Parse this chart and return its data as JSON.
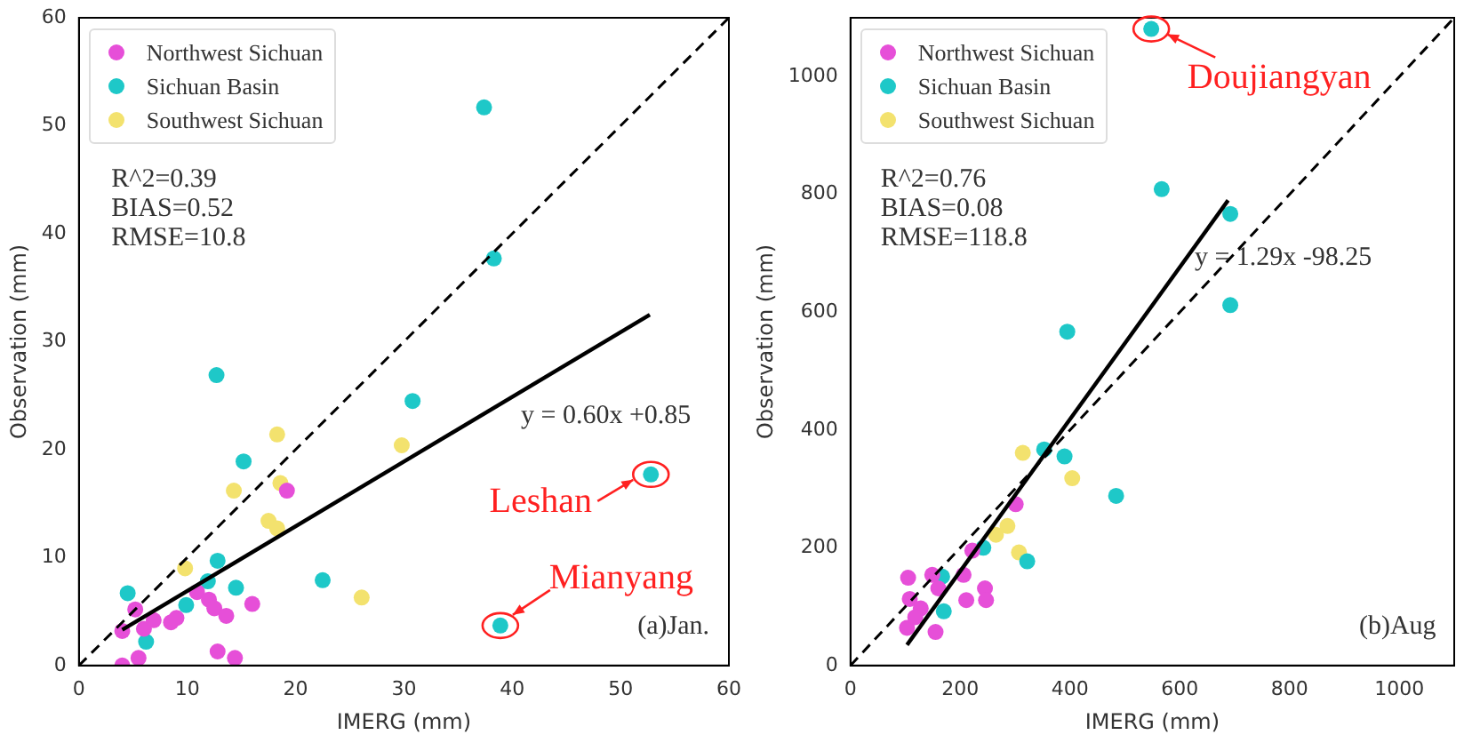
{
  "chart_data": [
    {
      "type": "scatter",
      "xlabel": "IMERG (mm)",
      "ylabel": "Observation (mm)",
      "xlim": [
        0,
        60
      ],
      "ylim": [
        0,
        60
      ],
      "xticks": [
        0,
        10,
        20,
        30,
        40,
        50,
        60
      ],
      "yticks": [
        0,
        10,
        20,
        30,
        40,
        50,
        60
      ],
      "grid": false,
      "legend": "top left",
      "marker": "circle",
      "annotations": [
        "R^2=0.39",
        "BIAS=0.52",
        "RMSE=10.8",
        "y = 0.60x +0.85",
        "(a)Jan.",
        {
          "text": "Leshan",
          "x": 52.8,
          "y": 17.7
        },
        {
          "text": "Mianyang",
          "x": 38.9,
          "y": 3.7
        }
      ],
      "series": [
        {
          "name": "Northwest Sichuan",
          "color": "#e64fd8",
          "x": [
            4.0,
            5.5,
            5.2,
            4.0,
            6.0,
            6.9,
            8.5,
            9.0,
            10.9,
            12.0,
            12.5,
            13.6,
            16.0,
            12.8,
            14.4,
            19.2
          ],
          "values": [
            0,
            0.7,
            5.2,
            3.2,
            3.4,
            4.2,
            4.0,
            4.4,
            6.8,
            6.1,
            5.3,
            4.6,
            5.7,
            1.3,
            0.7,
            16.2
          ]
        },
        {
          "name": "Sichuan Basin",
          "color": "#1ec8c8",
          "x": [
            4.5,
            6.2,
            9.9,
            11.9,
            12.8,
            12.7,
            14.5,
            15.2,
            22.5,
            30.8,
            37.4,
            38.3,
            38.9,
            52.8
          ],
          "values": [
            6.7,
            2.2,
            5.6,
            7.8,
            9.7,
            26.9,
            7.2,
            18.9,
            7.9,
            24.5,
            51.7,
            37.7,
            3.7,
            17.7
          ]
        },
        {
          "name": "Southwest Sichuan",
          "color": "#f3e26e",
          "x": [
            9.8,
            14.3,
            18.3,
            18.6,
            17.5,
            18.3,
            26.1,
            29.8
          ],
          "values": [
            9.0,
            16.2,
            21.4,
            16.9,
            13.4,
            12.7,
            6.3,
            20.4
          ]
        },
        {
          "type": "line",
          "color": "#000000",
          "line_style": "dashed",
          "marker": "none",
          "x": [
            0,
            60
          ],
          "values": [
            0,
            60
          ]
        },
        {
          "type": "line",
          "color": "#000000",
          "line_style": "solid",
          "marker": "none",
          "x": [
            4,
            52.7
          ],
          "values": [
            3.3,
            32.5
          ]
        }
      ]
    },
    {
      "type": "scatter",
      "xlabel": "IMERG (mm)",
      "ylabel": "Observation (mm)",
      "xlim": [
        0,
        1100
      ],
      "ylim": [
        0,
        1100
      ],
      "xticks": [
        0,
        200,
        400,
        600,
        800,
        1000
      ],
      "yticks": [
        0,
        200,
        400,
        600,
        800,
        1000
      ],
      "grid": false,
      "legend": "top left",
      "marker": "circle",
      "annotations": [
        "R^2=0.76",
        "BIAS=0.08",
        "RMSE=118.8",
        "y = 1.29x -98.25",
        "(b)Aug",
        {
          "text": "Doujiangyan",
          "x": 548,
          "y": 1081
        }
      ],
      "series": [
        {
          "name": "Northwest Sichuan",
          "color": "#e64fd8",
          "x": [
            105,
            108,
            103,
            128,
            118,
            149,
            155,
            206,
            211,
            245,
            247,
            222,
            301,
            160
          ],
          "values": [
            149,
            113,
            64,
            97,
            82,
            154,
            57,
            154,
            111,
            131,
            111,
            195,
            274,
            131
          ]
        },
        {
          "name": "Sichuan Basin",
          "color": "#1ec8c8",
          "x": [
            548,
            567,
            692,
            692,
            395,
            353,
            390,
            484,
            322,
            242,
            167,
            170
          ],
          "values": [
            1081,
            809,
            767,
            612,
            567,
            367,
            355,
            288,
            177,
            200,
            151,
            92
          ]
        },
        {
          "name": "Southwest Sichuan",
          "color": "#f3e26e",
          "x": [
            314,
            404,
            286,
            265,
            307
          ],
          "values": [
            361,
            318,
            237,
            222,
            192
          ]
        },
        {
          "type": "line",
          "color": "#000000",
          "line_style": "dashed",
          "marker": "none",
          "x": [
            0,
            1100
          ],
          "values": [
            0,
            1100
          ]
        },
        {
          "type": "line",
          "color": "#000000",
          "line_style": "solid",
          "marker": "none",
          "x": [
            103,
            688
          ],
          "values": [
            35,
            790
          ]
        }
      ]
    }
  ]
}
